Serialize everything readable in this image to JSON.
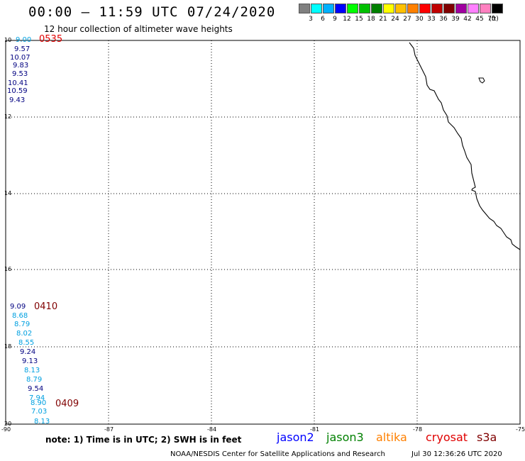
{
  "header": {
    "title": "00:00 – 11:59 UTC 07/24/2020",
    "subtitle": "12 hour collection of altimeter wave heights"
  },
  "colorbar": {
    "colors": [
      "#808080",
      "#00ffff",
      "#00b0ff",
      "#0000ff",
      "#00ff00",
      "#00c000",
      "#008000",
      "#ffff00",
      "#ffc000",
      "#ff8000",
      "#ff0000",
      "#c00000",
      "#800000",
      "#a000a0",
      "#ff80ff",
      "#ff80c0",
      "#000000"
    ],
    "labels": [
      "3",
      "6",
      "9",
      "12",
      "15",
      "18",
      "21",
      "24",
      "27",
      "30",
      "33",
      "36",
      "39",
      "42",
      "45",
      "70",
      "(ft)"
    ]
  },
  "axes": {
    "lat_labels": [
      "10",
      "12",
      "14",
      "16",
      "18",
      "20"
    ],
    "lon_labels": [
      "-90",
      "-87",
      "-84",
      "-81",
      "-78",
      "-75"
    ]
  },
  "passes": [
    {
      "time": "0535",
      "color": "#e00000"
    },
    {
      "time": "0410",
      "color": "#800000"
    },
    {
      "time": "0409",
      "color": "#800000"
    }
  ],
  "observations": [
    {
      "value": "9.00",
      "color": "#00a0e0"
    },
    {
      "value": "9.57",
      "color": "#000080"
    },
    {
      "value": "10.07",
      "color": "#000080"
    },
    {
      "value": "9.83",
      "color": "#000080"
    },
    {
      "value": "9.53",
      "color": "#000080"
    },
    {
      "value": "10.41",
      "color": "#000080"
    },
    {
      "value": "10.59",
      "color": "#000080"
    },
    {
      "value": "9.43",
      "color": "#000080"
    },
    {
      "value": "9.09",
      "color": "#000080"
    },
    {
      "value": "8.68",
      "color": "#00a0e0"
    },
    {
      "value": "8.79",
      "color": "#00a0e0"
    },
    {
      "value": "8.02",
      "color": "#00a0e0"
    },
    {
      "value": "8.55",
      "color": "#00a0e0"
    },
    {
      "value": "9.24",
      "color": "#000080"
    },
    {
      "value": "9.13",
      "color": "#000080"
    },
    {
      "value": "8.13",
      "color": "#00a0e0"
    },
    {
      "value": "8.79",
      "color": "#00a0e0"
    },
    {
      "value": "9.54",
      "color": "#000080"
    },
    {
      "value": "7.94",
      "color": "#00a0e0"
    },
    {
      "value": "8.90",
      "color": "#00a0e0"
    },
    {
      "value": "7.03",
      "color": "#00a0e0"
    },
    {
      "value": "8.13",
      "color": "#00a0e0"
    }
  ],
  "footer": {
    "note": "note: 1) Time is in UTC; 2) SWH is in feet",
    "satellites": [
      {
        "name": "jason2",
        "color": "#0000ff"
      },
      {
        "name": "jason3",
        "color": "#008000"
      },
      {
        "name": "altika",
        "color": "#ff8000"
      },
      {
        "name": "cryosat",
        "color": "#e00000"
      },
      {
        "name": "s3a",
        "color": "#800000"
      }
    ],
    "credit": "NOAA/NESDIS Center for Satellite Applications and Research",
    "date": "Jul 30 12:36:26 UTC 2020"
  }
}
